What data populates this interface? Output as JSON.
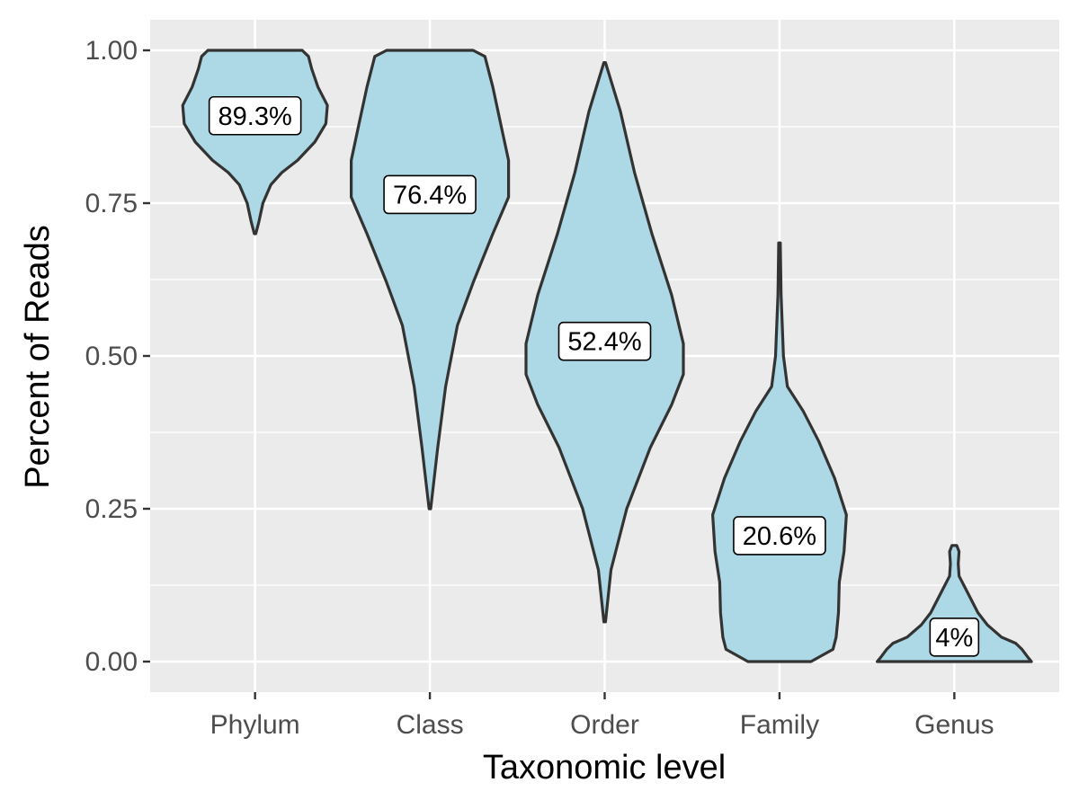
{
  "chart_data": {
    "type": "violin",
    "title": "",
    "xlabel": "Taxonomic level",
    "ylabel": "Percent of Reads",
    "ylim": [
      -0.05,
      1.05
    ],
    "yticks": [
      "0.00",
      "0.25",
      "0.50",
      "0.75",
      "1.00"
    ],
    "ytick_values": [
      0,
      0.25,
      0.5,
      0.75,
      1.0
    ],
    "grid": true,
    "legend": "none",
    "fill_color": "#add8e6",
    "outline_color": "#333333",
    "panel_color": "#ebebeb",
    "categories": [
      "Phylum",
      "Class",
      "Order",
      "Family",
      "Genus"
    ],
    "series": [
      {
        "category": "Phylum",
        "min": 0.7,
        "max": 1.0,
        "label_y": 0.893,
        "label": "89.3%",
        "profile": [
          [
            0.7,
            0.01
          ],
          [
            0.72,
            0.05
          ],
          [
            0.75,
            0.1
          ],
          [
            0.78,
            0.2
          ],
          [
            0.8,
            0.34
          ],
          [
            0.82,
            0.54
          ],
          [
            0.85,
            0.76
          ],
          [
            0.88,
            0.9
          ],
          [
            0.91,
            0.92
          ],
          [
            0.94,
            0.8
          ],
          [
            0.97,
            0.72
          ],
          [
            0.99,
            0.68
          ],
          [
            1.0,
            0.6
          ]
        ]
      },
      {
        "category": "Class",
        "min": 0.25,
        "max": 1.0,
        "label_y": 0.764,
        "label": "76.4%",
        "profile": [
          [
            0.25,
            0.01
          ],
          [
            0.35,
            0.1
          ],
          [
            0.45,
            0.2
          ],
          [
            0.55,
            0.35
          ],
          [
            0.62,
            0.55
          ],
          [
            0.7,
            0.8
          ],
          [
            0.76,
            1.0
          ],
          [
            0.82,
            1.0
          ],
          [
            0.88,
            0.9
          ],
          [
            0.94,
            0.8
          ],
          [
            0.99,
            0.7
          ],
          [
            1.0,
            0.55
          ]
        ]
      },
      {
        "category": "Order",
        "min": 0.065,
        "max": 0.98,
        "label_y": 0.524,
        "label": "52.4%",
        "profile": [
          [
            0.065,
            0.01
          ],
          [
            0.15,
            0.08
          ],
          [
            0.25,
            0.28
          ],
          [
            0.35,
            0.58
          ],
          [
            0.42,
            0.85
          ],
          [
            0.47,
            1.0
          ],
          [
            0.52,
            1.0
          ],
          [
            0.6,
            0.85
          ],
          [
            0.7,
            0.6
          ],
          [
            0.8,
            0.38
          ],
          [
            0.9,
            0.2
          ],
          [
            0.98,
            0.01
          ]
        ]
      },
      {
        "category": "Family",
        "min": 0.0,
        "max": 0.685,
        "label_y": 0.206,
        "label": "20.6%",
        "profile": [
          [
            0.0,
            0.4
          ],
          [
            0.02,
            0.68
          ],
          [
            0.04,
            0.72
          ],
          [
            0.08,
            0.75
          ],
          [
            0.13,
            0.76
          ],
          [
            0.18,
            0.82
          ],
          [
            0.24,
            0.85
          ],
          [
            0.3,
            0.7
          ],
          [
            0.36,
            0.5
          ],
          [
            0.41,
            0.3
          ],
          [
            0.45,
            0.1
          ],
          [
            0.5,
            0.05
          ],
          [
            0.6,
            0.02
          ],
          [
            0.685,
            0.01
          ]
        ]
      },
      {
        "category": "Genus",
        "min": 0.0,
        "max": 0.19,
        "label_y": 0.04,
        "label": "4%",
        "profile": [
          [
            0.0,
            0.98
          ],
          [
            0.008,
            0.93
          ],
          [
            0.02,
            0.86
          ],
          [
            0.03,
            0.78
          ],
          [
            0.04,
            0.6
          ],
          [
            0.06,
            0.42
          ],
          [
            0.08,
            0.3
          ],
          [
            0.1,
            0.22
          ],
          [
            0.12,
            0.14
          ],
          [
            0.14,
            0.06
          ],
          [
            0.16,
            0.05
          ],
          [
            0.18,
            0.06
          ],
          [
            0.19,
            0.03
          ]
        ]
      }
    ]
  }
}
